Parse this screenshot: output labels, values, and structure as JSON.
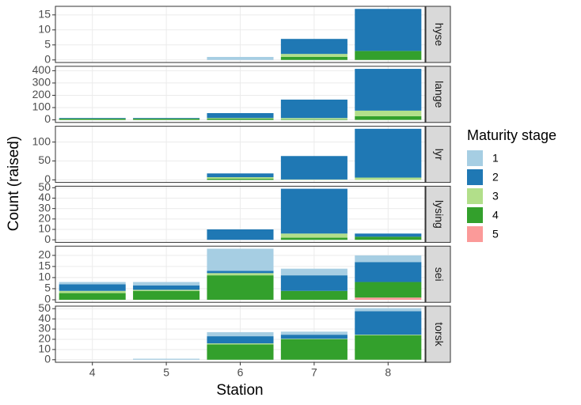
{
  "x_label": "Station",
  "y_label": "Count (raised)",
  "legend_title": "Maturity stage",
  "chart_data": [
    {
      "type": "bar",
      "facet": "hyse",
      "categories": [
        "4",
        "5",
        "6",
        "7",
        "8"
      ],
      "series": [
        {
          "name": "1",
          "color": "#a6cee3",
          "values": [
            null,
            null,
            1,
            null,
            null
          ]
        },
        {
          "name": "2",
          "color": "#1f78b4",
          "values": [
            null,
            null,
            null,
            5,
            14
          ]
        },
        {
          "name": "3",
          "color": "#b2df8a",
          "values": [
            null,
            null,
            null,
            1,
            null
          ]
        },
        {
          "name": "4",
          "color": "#33a02c",
          "values": [
            null,
            null,
            null,
            1,
            3
          ]
        },
        {
          "name": "5",
          "color": "#fb9a99",
          "values": [
            null,
            null,
            null,
            null,
            null
          ]
        }
      ],
      "ylim": [
        -0.85,
        17.85
      ],
      "yticks": [
        0,
        5,
        10,
        15
      ],
      "grid": true
    },
    {
      "type": "bar",
      "facet": "lange",
      "categories": [
        "4",
        "5",
        "6",
        "7",
        "8"
      ],
      "series": [
        {
          "name": "1",
          "color": "#a6cee3",
          "values": [
            null,
            null,
            null,
            null,
            null
          ]
        },
        {
          "name": "2",
          "color": "#1f78b4",
          "values": [
            5,
            5,
            40,
            150,
            340
          ]
        },
        {
          "name": "3",
          "color": "#b2df8a",
          "values": [
            null,
            null,
            5,
            10,
            45
          ]
        },
        {
          "name": "4",
          "color": "#33a02c",
          "values": [
            10,
            10,
            10,
            5,
            30
          ]
        },
        {
          "name": "5",
          "color": "#fb9a99",
          "values": [
            null,
            null,
            null,
            null,
            null
          ]
        }
      ],
      "ylim": [
        -21,
        436
      ],
      "yticks": [
        0,
        100,
        200,
        300,
        400
      ],
      "grid": true
    },
    {
      "type": "bar",
      "facet": "lyr",
      "categories": [
        "4",
        "5",
        "6",
        "7",
        "8"
      ],
      "series": [
        {
          "name": "1",
          "color": "#a6cee3",
          "values": [
            null,
            null,
            null,
            null,
            null
          ]
        },
        {
          "name": "2",
          "color": "#1f78b4",
          "values": [
            null,
            null,
            10,
            62,
            129
          ]
        },
        {
          "name": "3",
          "color": "#b2df8a",
          "values": [
            null,
            null,
            4,
            1,
            6
          ]
        },
        {
          "name": "4",
          "color": "#33a02c",
          "values": [
            null,
            null,
            3,
            null,
            null
          ]
        },
        {
          "name": "5",
          "color": "#fb9a99",
          "values": [
            null,
            null,
            null,
            null,
            null
          ]
        }
      ],
      "ylim": [
        -6.75,
        141.75
      ],
      "yticks": [
        0,
        50,
        100
      ],
      "grid": true
    },
    {
      "type": "bar",
      "facet": "lysing",
      "categories": [
        "4",
        "5",
        "6",
        "7",
        "8"
      ],
      "series": [
        {
          "name": "1",
          "color": "#a6cee3",
          "values": [
            null,
            null,
            null,
            null,
            null
          ]
        },
        {
          "name": "2",
          "color": "#1f78b4",
          "values": [
            null,
            null,
            10,
            43,
            3
          ]
        },
        {
          "name": "3",
          "color": "#b2df8a",
          "values": [
            null,
            null,
            null,
            4,
            null
          ]
        },
        {
          "name": "4",
          "color": "#33a02c",
          "values": [
            null,
            null,
            null,
            2,
            3
          ]
        },
        {
          "name": "5",
          "color": "#fb9a99",
          "values": [
            null,
            null,
            null,
            null,
            null
          ]
        }
      ],
      "ylim": [
        -2.45,
        51.45
      ],
      "yticks": [
        0,
        10,
        20,
        30,
        40,
        50
      ],
      "grid": true
    },
    {
      "type": "bar",
      "facet": "sei",
      "categories": [
        "4",
        "5",
        "6",
        "7",
        "8"
      ],
      "series": [
        {
          "name": "1",
          "color": "#a6cee3",
          "values": [
            1,
            1.5,
            10,
            3,
            3
          ]
        },
        {
          "name": "2",
          "color": "#1f78b4",
          "values": [
            3,
            2,
            1,
            7,
            9
          ]
        },
        {
          "name": "3",
          "color": "#b2df8a",
          "values": [
            1,
            0.5,
            1,
            null,
            null
          ]
        },
        {
          "name": "4",
          "color": "#33a02c",
          "values": [
            3,
            4,
            11,
            4,
            7
          ]
        },
        {
          "name": "5",
          "color": "#fb9a99",
          "values": [
            null,
            null,
            null,
            null,
            1
          ]
        }
      ],
      "ylim": [
        -1.15,
        24.15
      ],
      "yticks": [
        0,
        5,
        10,
        15,
        20
      ],
      "grid": true
    },
    {
      "type": "bar",
      "facet": "torsk",
      "categories": [
        "4",
        "5",
        "6",
        "7",
        "8"
      ],
      "series": [
        {
          "name": "1",
          "color": "#a6cee3",
          "values": [
            null,
            1,
            4,
            3,
            3
          ]
        },
        {
          "name": "2",
          "color": "#1f78b4",
          "values": [
            null,
            null,
            7,
            4,
            23
          ]
        },
        {
          "name": "3",
          "color": "#b2df8a",
          "values": [
            null,
            null,
            1,
            0.5,
            0.5
          ]
        },
        {
          "name": "4",
          "color": "#33a02c",
          "values": [
            null,
            null,
            15,
            20,
            24
          ]
        },
        {
          "name": "5",
          "color": "#fb9a99",
          "values": [
            null,
            null,
            null,
            null,
            null
          ]
        }
      ],
      "ylim": [
        -2.5,
        52.5
      ],
      "yticks": [
        0,
        10,
        20,
        30,
        40,
        50
      ],
      "grid": true
    }
  ]
}
